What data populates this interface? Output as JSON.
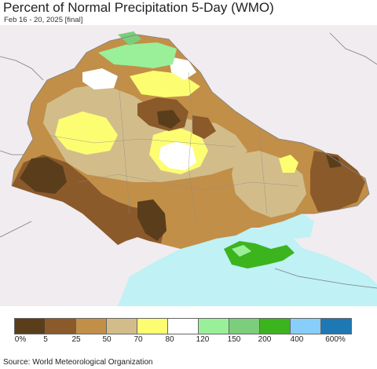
{
  "title": "Percent of Normal Precipitation 5-Day (WMO)",
  "subtitle": "Feb 16 - 20, 2025 [final]",
  "source": "Source: World Meteorological Organization",
  "legend": {
    "colors": [
      "#5a3e1b",
      "#8b5a2b",
      "#c28f48",
      "#d2bd8a",
      "#fdfd72",
      "#ffffff",
      "#99f099",
      "#7ccd7c",
      "#3cb41e",
      "#87cefa",
      "#1e78b4"
    ],
    "labels": [
      "0%",
      "5",
      "25",
      "50",
      "70",
      "80",
      "120",
      "150",
      "200",
      "400",
      "600%"
    ]
  },
  "map": {
    "land_bg": "#f0ecef",
    "sea": "#bff1f5",
    "border": "#7f7f7f"
  }
}
